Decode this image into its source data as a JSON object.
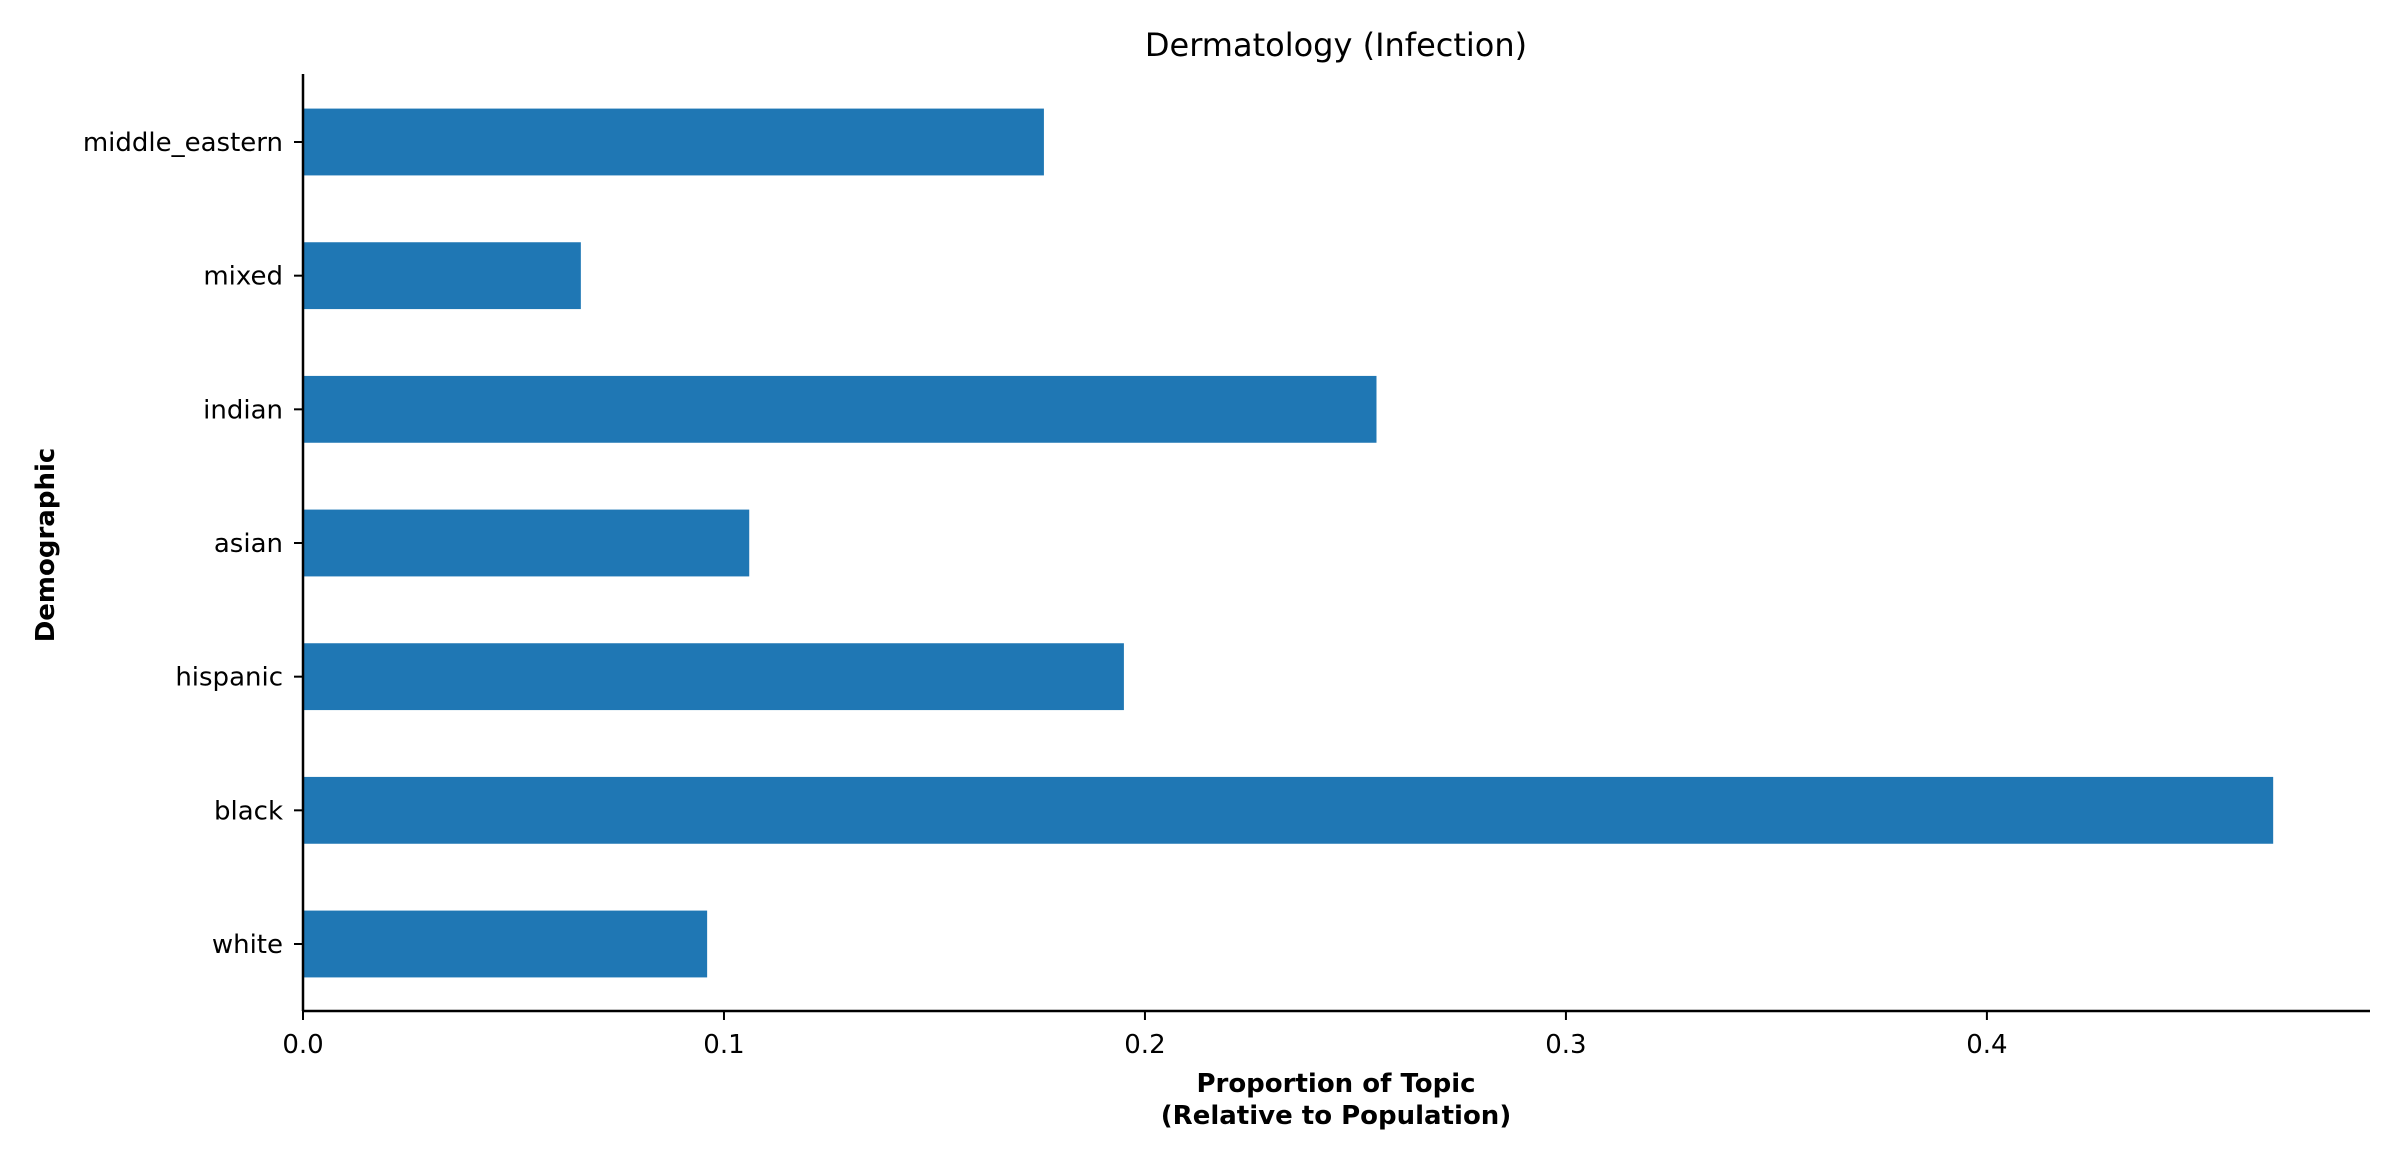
{
  "chart_data": {
    "type": "bar",
    "orientation": "horizontal",
    "title": "Dermatology (Infection)",
    "xlabel_lines": [
      "Proportion of Topic",
      "(Relative to Population)"
    ],
    "ylabel": "Demographic",
    "categories": [
      "white",
      "black",
      "hispanic",
      "asian",
      "indian",
      "mixed",
      "middle_eastern"
    ],
    "values": [
      0.096,
      0.468,
      0.195,
      0.106,
      0.255,
      0.066,
      0.176
    ],
    "xlim": [
      0,
      0.491
    ],
    "xticks": [
      0.0,
      0.1,
      0.2,
      0.3,
      0.4
    ],
    "xtick_labels": [
      "0.0",
      "0.1",
      "0.2",
      "0.3",
      "0.4"
    ],
    "bar_color": "#1f77b4",
    "grid": false,
    "legend": "none"
  }
}
